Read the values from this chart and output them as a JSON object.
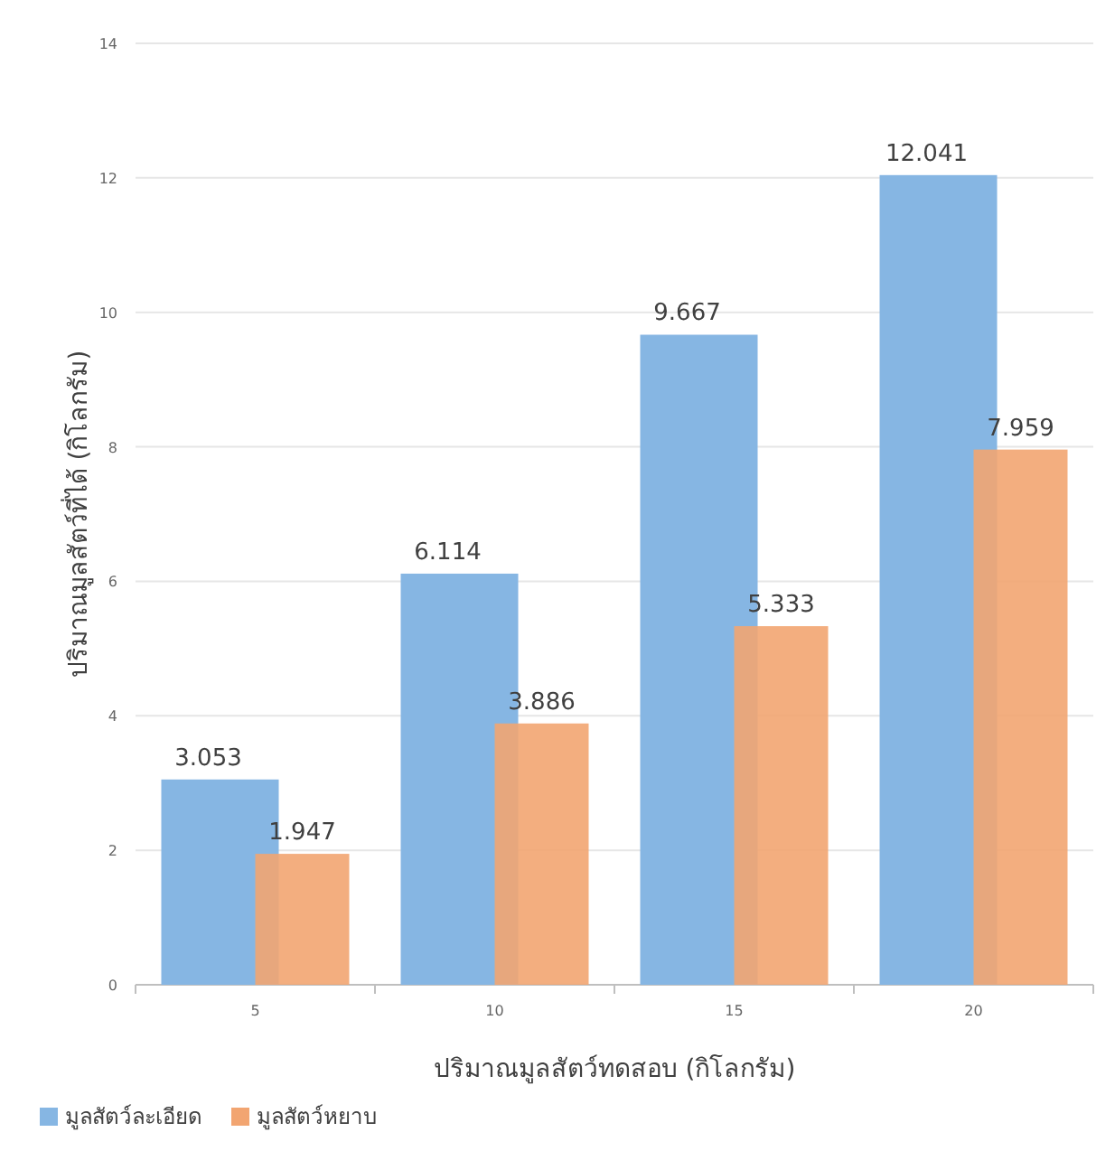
{
  "chart_data": {
    "type": "bar",
    "xlabel": "ปริมาณมูลสัตว์ทดสอบ (กิโลกรัม)",
    "ylabel": "ปริมาณมูลสัตว์ที่ได้ (กิโลกรัม)",
    "categories": [
      "5",
      "10",
      "15",
      "20"
    ],
    "series": [
      {
        "name": "มูลสัตว์ละเอียด",
        "color": "#86b6e3",
        "values": [
          3.053,
          6.114,
          9.667,
          12.041
        ]
      },
      {
        "name": "มูลสัตว์หยาบ",
        "color": "#f2a571",
        "values": [
          1.947,
          3.886,
          5.333,
          7.959
        ]
      }
    ],
    "ylim": [
      0,
      14
    ],
    "yticks": [
      0,
      2,
      4,
      6,
      8,
      10,
      12,
      14
    ],
    "grid": "y",
    "legend": "bottom left",
    "data_labels": true
  }
}
